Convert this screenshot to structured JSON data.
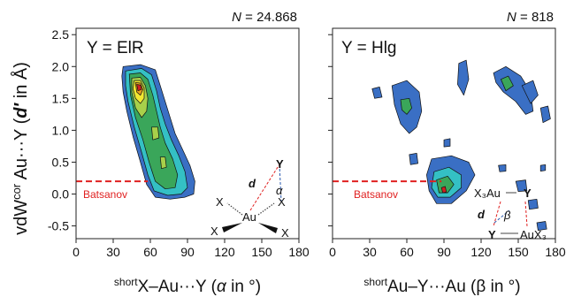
{
  "colors": {
    "level1": "#3a6fc4",
    "level2": "#34c0c4",
    "level3": "#3aa65a",
    "level4": "#a8d04a",
    "level5": "#f2e830",
    "level6": "#e8a020",
    "level7": "#d02020",
    "batsanov": "#e02020",
    "green_atom": "#1a8a1a",
    "blue_angle": "#2a5ab0"
  },
  "y_axis": {
    "label_main": "vdW",
    "label_sup": "cor",
    "label_rest": " Au···Y (",
    "label_var": "d′",
    "label_end": " in Å)"
  },
  "chart_data": [
    {
      "type": "heatmap",
      "panel_label": "Y = ElR",
      "n_label_var": "N",
      "n_label_value": " = 24.868",
      "xlabel_sup": "short",
      "xlabel_main": "X–Au···Y (",
      "xlabel_var": "α",
      "xlabel_end": " in °)",
      "xlim": [
        0,
        180
      ],
      "ylim": [
        -0.7,
        2.6
      ],
      "xticks": [
        "0",
        "30",
        "60",
        "90",
        "120",
        "150",
        "180"
      ],
      "yticks": [
        "-0.5",
        "0.0",
        "0.5",
        "1.0",
        "1.5",
        "2.0",
        "2.5"
      ],
      "batsanov_label": "Batsanov",
      "batsanov_y": 0.2,
      "contours": [
        {
          "level": 1,
          "points": [
            [
              38,
              2.0
            ],
            [
              52,
              2.03
            ],
            [
              64,
              1.95
            ],
            [
              68,
              1.7
            ],
            [
              72,
              1.45
            ],
            [
              76,
              1.2
            ],
            [
              80,
              0.95
            ],
            [
              86,
              0.7
            ],
            [
              92,
              0.45
            ],
            [
              96,
              0.2
            ],
            [
              95,
              0.0
            ],
            [
              88,
              -0.05
            ],
            [
              76,
              -0.08
            ],
            [
              64,
              -0.05
            ],
            [
              57,
              0.15
            ],
            [
              52,
              0.5
            ],
            [
              46,
              0.9
            ],
            [
              41,
              1.3
            ],
            [
              38,
              1.6
            ],
            [
              37,
              1.85
            ]
          ]
        },
        {
          "level": 2,
          "points": [
            [
              40,
              1.93
            ],
            [
              53,
              1.97
            ],
            [
              61,
              1.87
            ],
            [
              65,
              1.62
            ],
            [
              68,
              1.35
            ],
            [
              72,
              1.1
            ],
            [
              77,
              0.85
            ],
            [
              83,
              0.6
            ],
            [
              88,
              0.35
            ],
            [
              90,
              0.1
            ],
            [
              85,
              0.0
            ],
            [
              74,
              -0.02
            ],
            [
              63,
              0.05
            ],
            [
              58,
              0.3
            ],
            [
              53,
              0.65
            ],
            [
              47,
              1.05
            ],
            [
              42,
              1.45
            ],
            [
              40,
              1.7
            ]
          ]
        },
        {
          "level": 3,
          "points": [
            [
              43,
              1.88
            ],
            [
              52,
              1.9
            ],
            [
              58,
              1.8
            ],
            [
              62,
              1.55
            ],
            [
              65,
              1.3
            ],
            [
              68,
              1.05
            ],
            [
              72,
              0.8
            ],
            [
              78,
              0.55
            ],
            [
              82,
              0.3
            ],
            [
              80,
              0.1
            ],
            [
              72,
              0.08
            ],
            [
              64,
              0.2
            ],
            [
              59,
              0.5
            ],
            [
              54,
              0.85
            ],
            [
              48,
              1.2
            ],
            [
              44,
              1.55
            ]
          ]
        },
        {
          "level": 4,
          "points": [
            [
              45,
              1.82
            ],
            [
              52,
              1.83
            ],
            [
              56,
              1.7
            ],
            [
              58,
              1.5
            ],
            [
              57,
              1.3
            ],
            [
              53,
              1.2
            ],
            [
              48,
              1.35
            ],
            [
              45,
              1.6
            ]
          ]
        },
        {
          "level": 5,
          "points": [
            [
              47,
              1.78
            ],
            [
              52,
              1.78
            ],
            [
              55,
              1.66
            ],
            [
              55,
              1.5
            ],
            [
              52,
              1.42
            ],
            [
              48,
              1.5
            ],
            [
              46,
              1.65
            ]
          ]
        },
        {
          "level": 6,
          "points": [
            [
              48,
              1.75
            ],
            [
              52,
              1.74
            ],
            [
              54,
              1.64
            ],
            [
              52,
              1.55
            ],
            [
              49,
              1.6
            ]
          ]
        },
        {
          "level": 7,
          "points": [
            [
              49,
              1.72
            ],
            [
              52,
              1.71
            ],
            [
              53,
              1.64
            ],
            [
              50,
              1.62
            ]
          ]
        },
        {
          "level": 4,
          "points": [
            [
              61,
              1.05
            ],
            [
              66,
              1.05
            ],
            [
              67,
              0.88
            ],
            [
              62,
              0.85
            ]
          ]
        },
        {
          "level": 4,
          "points": [
            [
              68,
              0.58
            ],
            [
              72,
              0.58
            ],
            [
              73,
              0.42
            ],
            [
              69,
              0.4
            ]
          ]
        }
      ],
      "diagram": {
        "green": "Y",
        "red": "d",
        "blue": "α",
        "center": "Au",
        "ligands": [
          "X",
          "X",
          "X",
          "X"
        ]
      }
    },
    {
      "type": "heatmap",
      "panel_label": "Y = Hlg",
      "n_label_var": "N",
      "n_label_value": " = 818",
      "xlabel_sup": "short",
      "xlabel_main": "Au–Y···Au (β in °)",
      "xlim": [
        0,
        180
      ],
      "ylim": [
        -0.7,
        2.6
      ],
      "xticks": [
        "0",
        "30",
        "60",
        "90",
        "120",
        "150",
        "180"
      ],
      "batsanov_label": "Batsanov",
      "batsanov_y": 0.2,
      "contours": [
        {
          "level": 1,
          "points": [
            [
              48,
              1.7
            ],
            [
              60,
              1.78
            ],
            [
              70,
              1.6
            ],
            [
              72,
              1.3
            ],
            [
              68,
              1.05
            ],
            [
              62,
              0.95
            ],
            [
              55,
              1.1
            ],
            [
              50,
              1.4
            ]
          ]
        },
        {
          "level": 3,
          "points": [
            [
              55,
              1.48
            ],
            [
              62,
              1.5
            ],
            [
              64,
              1.35
            ],
            [
              60,
              1.25
            ],
            [
              56,
              1.32
            ]
          ]
        },
        {
          "level": 1,
          "points": [
            [
              102,
              2.05
            ],
            [
              108,
              2.1
            ],
            [
              110,
              1.8
            ],
            [
              106,
              1.55
            ],
            [
              101,
              1.72
            ]
          ]
        },
        {
          "level": 1,
          "points": [
            [
              130,
              1.9
            ],
            [
              140,
              2.0
            ],
            [
              152,
              1.85
            ],
            [
              160,
              1.6
            ],
            [
              162,
              1.3
            ],
            [
              156,
              1.25
            ],
            [
              148,
              1.45
            ],
            [
              138,
              1.6
            ],
            [
              132,
              1.75
            ]
          ]
        },
        {
          "level": 3,
          "points": [
            [
              136,
              1.8
            ],
            [
              142,
              1.85
            ],
            [
              146,
              1.7
            ],
            [
              140,
              1.62
            ]
          ]
        },
        {
          "level": 1,
          "points": [
            [
              153,
              1.7
            ],
            [
              162,
              1.78
            ],
            [
              166,
              1.55
            ],
            [
              160,
              1.42
            ]
          ]
        },
        {
          "level": 1,
          "points": [
            [
              168,
              1.35
            ],
            [
              174,
              1.38
            ],
            [
              176,
              1.18
            ],
            [
              170,
              1.12
            ]
          ]
        },
        {
          "level": 1,
          "points": [
            [
              32,
              1.65
            ],
            [
              38,
              1.68
            ],
            [
              40,
              1.52
            ],
            [
              34,
              1.5
            ]
          ]
        },
        {
          "level": 1,
          "points": [
            [
              80,
              0.55
            ],
            [
              96,
              0.6
            ],
            [
              110,
              0.5
            ],
            [
              115,
              0.3
            ],
            [
              108,
              0.05
            ],
            [
              96,
              -0.15
            ],
            [
              84,
              -0.15
            ],
            [
              78,
              0.05
            ],
            [
              76,
              0.3
            ]
          ]
        },
        {
          "level": 2,
          "points": [
            [
              82,
              0.35
            ],
            [
              94,
              0.42
            ],
            [
              104,
              0.3
            ],
            [
              104,
              0.1
            ],
            [
              95,
              -0.05
            ],
            [
              85,
              -0.05
            ],
            [
              80,
              0.1
            ]
          ]
        },
        {
          "level": 3,
          "points": [
            [
              84,
              0.22
            ],
            [
              93,
              0.28
            ],
            [
              98,
              0.15
            ],
            [
              93,
              0.02
            ],
            [
              86,
              0.02
            ]
          ]
        },
        {
          "level": 7,
          "points": [
            [
              88,
              0.1
            ],
            [
              91,
              0.12
            ],
            [
              92,
              0.03
            ],
            [
              89,
              0.02
            ]
          ]
        },
        {
          "level": 1,
          "points": [
            [
              62,
              0.62
            ],
            [
              68,
              0.64
            ],
            [
              69,
              0.48
            ],
            [
              63,
              0.46
            ]
          ]
        },
        {
          "level": 1,
          "points": [
            [
              90,
              0.85
            ],
            [
              95,
              0.87
            ],
            [
              95,
              0.75
            ],
            [
              90,
              0.74
            ]
          ]
        },
        {
          "level": 1,
          "points": [
            [
              134,
              0.45
            ],
            [
              140,
              0.46
            ],
            [
              140,
              0.36
            ],
            [
              135,
              0.35
            ]
          ]
        },
        {
          "level": 1,
          "points": [
            [
              148,
              0.2
            ],
            [
              156,
              0.22
            ],
            [
              157,
              0.05
            ],
            [
              150,
              0.04
            ]
          ]
        },
        {
          "level": 1,
          "points": [
            [
              158,
              -0.1
            ],
            [
              165,
              -0.08
            ],
            [
              166,
              -0.22
            ],
            [
              159,
              -0.24
            ]
          ]
        },
        {
          "level": 1,
          "points": [
            [
              168,
              0.45
            ],
            [
              172,
              0.46
            ],
            [
              172,
              0.37
            ],
            [
              168,
              0.36
            ]
          ]
        },
        {
          "level": 1,
          "points": [
            [
              165,
              -0.45
            ],
            [
              172,
              -0.43
            ],
            [
              173,
              -0.55
            ],
            [
              166,
              -0.57
            ]
          ]
        }
      ],
      "diagram": {
        "top_left": "X₃Au",
        "top_right": "Y",
        "red": "d",
        "blue": "β",
        "bottom_left": "Y",
        "bottom_right": "AuX₃"
      }
    }
  ]
}
